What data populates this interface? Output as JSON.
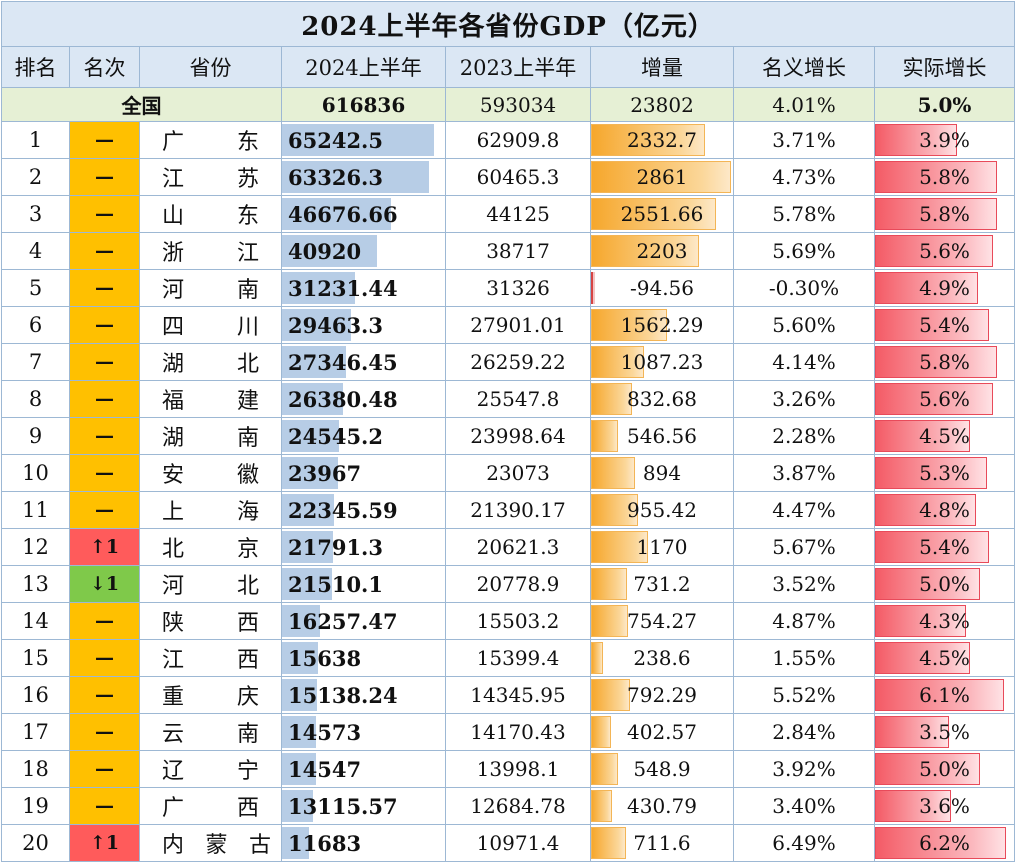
{
  "title": "2024上半年各省份GDP（亿元）",
  "headers": {
    "rank": "排名",
    "change": "名次",
    "province": "省份",
    "gdp_2024": "2024上半年",
    "gdp_2023": "2023上半年",
    "increase": "增量",
    "nominal_growth": "名义增长",
    "real_growth": "实际增长"
  },
  "national": {
    "label": "全国",
    "gdp_2024": "616836",
    "gdp_2023": "593034",
    "increase": "23802",
    "nominal_growth": "4.01%",
    "real_growth": "5.0%"
  },
  "colors": {
    "header_bg": "#dbe7f4",
    "national_bg": "#e6f0d5",
    "rank_flat": "#ffc000",
    "rank_up": "#ff5b5b",
    "rank_down": "#7fc94a",
    "gdp_bar": "#b7cde6",
    "increase_bar": "#f6a72c",
    "real_growth_bar": "#f45b66"
  },
  "chart_data": {
    "type": "table",
    "title": "2024上半年各省份GDP（亿元）",
    "columns": [
      "排名",
      "名次",
      "省份",
      "2024上半年",
      "2023上半年",
      "增量",
      "名义增长",
      "实际增长"
    ],
    "scales": {
      "gdp_2024_max": 70000,
      "increase_max": 2900,
      "real_growth_max": 6.6
    },
    "rows": [
      {
        "rank": "1",
        "change": "—",
        "change_type": "flat",
        "province": [
          "广",
          "东"
        ],
        "gdp_2024": "65242.5",
        "gdp_2024_value": 65242.5,
        "gdp_2023": "62909.8",
        "increase": "2332.7",
        "increase_value": 2332.7,
        "nominal_growth": "3.71%",
        "real_growth": "3.9%",
        "real_growth_value": 3.9
      },
      {
        "rank": "2",
        "change": "—",
        "change_type": "flat",
        "province": [
          "江",
          "苏"
        ],
        "gdp_2024": "63326.3",
        "gdp_2024_value": 63326.3,
        "gdp_2023": "60465.3",
        "increase": "2861",
        "increase_value": 2861,
        "nominal_growth": "4.73%",
        "real_growth": "5.8%",
        "real_growth_value": 5.8
      },
      {
        "rank": "3",
        "change": "—",
        "change_type": "flat",
        "province": [
          "山",
          "东"
        ],
        "gdp_2024": "46676.66",
        "gdp_2024_value": 46676.66,
        "gdp_2023": "44125",
        "increase": "2551.66",
        "increase_value": 2551.66,
        "nominal_growth": "5.78%",
        "real_growth": "5.8%",
        "real_growth_value": 5.8
      },
      {
        "rank": "4",
        "change": "—",
        "change_type": "flat",
        "province": [
          "浙",
          "江"
        ],
        "gdp_2024": "40920",
        "gdp_2024_value": 40920,
        "gdp_2023": "38717",
        "increase": "2203",
        "increase_value": 2203,
        "nominal_growth": "5.69%",
        "real_growth": "5.6%",
        "real_growth_value": 5.6
      },
      {
        "rank": "5",
        "change": "—",
        "change_type": "flat",
        "province": [
          "河",
          "南"
        ],
        "gdp_2024": "31231.44",
        "gdp_2024_value": 31231.44,
        "gdp_2023": "31326",
        "increase": "-94.56",
        "increase_value": -94.56,
        "nominal_growth": "-0.30%",
        "real_growth": "4.9%",
        "real_growth_value": 4.9
      },
      {
        "rank": "6",
        "change": "—",
        "change_type": "flat",
        "province": [
          "四",
          "川"
        ],
        "gdp_2024": "29463.3",
        "gdp_2024_value": 29463.3,
        "gdp_2023": "27901.01",
        "increase": "1562.29",
        "increase_value": 1562.29,
        "nominal_growth": "5.60%",
        "real_growth": "5.4%",
        "real_growth_value": 5.4
      },
      {
        "rank": "7",
        "change": "—",
        "change_type": "flat",
        "province": [
          "湖",
          "北"
        ],
        "gdp_2024": "27346.45",
        "gdp_2024_value": 27346.45,
        "gdp_2023": "26259.22",
        "increase": "1087.23",
        "increase_value": 1087.23,
        "nominal_growth": "4.14%",
        "real_growth": "5.8%",
        "real_growth_value": 5.8
      },
      {
        "rank": "8",
        "change": "—",
        "change_type": "flat",
        "province": [
          "福",
          "建"
        ],
        "gdp_2024": "26380.48",
        "gdp_2024_value": 26380.48,
        "gdp_2023": "25547.8",
        "increase": "832.68",
        "increase_value": 832.68,
        "nominal_growth": "3.26%",
        "real_growth": "5.6%",
        "real_growth_value": 5.6
      },
      {
        "rank": "9",
        "change": "—",
        "change_type": "flat",
        "province": [
          "湖",
          "南"
        ],
        "gdp_2024": "24545.2",
        "gdp_2024_value": 24545.2,
        "gdp_2023": "23998.64",
        "increase": "546.56",
        "increase_value": 546.56,
        "nominal_growth": "2.28%",
        "real_growth": "4.5%",
        "real_growth_value": 4.5
      },
      {
        "rank": "10",
        "change": "—",
        "change_type": "flat",
        "province": [
          "安",
          "徽"
        ],
        "gdp_2024": "23967",
        "gdp_2024_value": 23967,
        "gdp_2023": "23073",
        "increase": "894",
        "increase_value": 894,
        "nominal_growth": "3.87%",
        "real_growth": "5.3%",
        "real_growth_value": 5.3
      },
      {
        "rank": "11",
        "change": "—",
        "change_type": "flat",
        "province": [
          "上",
          "海"
        ],
        "gdp_2024": "22345.59",
        "gdp_2024_value": 22345.59,
        "gdp_2023": "21390.17",
        "increase": "955.42",
        "increase_value": 955.42,
        "nominal_growth": "4.47%",
        "real_growth": "4.8%",
        "real_growth_value": 4.8
      },
      {
        "rank": "12",
        "change": "↑1",
        "change_type": "up",
        "province": [
          "北",
          "京"
        ],
        "gdp_2024": "21791.3",
        "gdp_2024_value": 21791.3,
        "gdp_2023": "20621.3",
        "increase": "1170",
        "increase_value": 1170,
        "nominal_growth": "5.67%",
        "real_growth": "5.4%",
        "real_growth_value": 5.4
      },
      {
        "rank": "13",
        "change": "↓1",
        "change_type": "down",
        "province": [
          "河",
          "北"
        ],
        "gdp_2024": "21510.1",
        "gdp_2024_value": 21510.1,
        "gdp_2023": "20778.9",
        "increase": "731.2",
        "increase_value": 731.2,
        "nominal_growth": "3.52%",
        "real_growth": "5.0%",
        "real_growth_value": 5.0
      },
      {
        "rank": "14",
        "change": "—",
        "change_type": "flat",
        "province": [
          "陕",
          "西"
        ],
        "gdp_2024": "16257.47",
        "gdp_2024_value": 16257.47,
        "gdp_2023": "15503.2",
        "increase": "754.27",
        "increase_value": 754.27,
        "nominal_growth": "4.87%",
        "real_growth": "4.3%",
        "real_growth_value": 4.3
      },
      {
        "rank": "15",
        "change": "—",
        "change_type": "flat",
        "province": [
          "江",
          "西"
        ],
        "gdp_2024": "15638",
        "gdp_2024_value": 15638,
        "gdp_2023": "15399.4",
        "increase": "238.6",
        "increase_value": 238.6,
        "nominal_growth": "1.55%",
        "real_growth": "4.5%",
        "real_growth_value": 4.5
      },
      {
        "rank": "16",
        "change": "—",
        "change_type": "flat",
        "province": [
          "重",
          "庆"
        ],
        "gdp_2024": "15138.24",
        "gdp_2024_value": 15138.24,
        "gdp_2023": "14345.95",
        "increase": "792.29",
        "increase_value": 792.29,
        "nominal_growth": "5.52%",
        "real_growth": "6.1%",
        "real_growth_value": 6.1
      },
      {
        "rank": "17",
        "change": "—",
        "change_type": "flat",
        "province": [
          "云",
          "南"
        ],
        "gdp_2024": "14573",
        "gdp_2024_value": 14573,
        "gdp_2023": "14170.43",
        "increase": "402.57",
        "increase_value": 402.57,
        "nominal_growth": "2.84%",
        "real_growth": "3.5%",
        "real_growth_value": 3.5
      },
      {
        "rank": "18",
        "change": "—",
        "change_type": "flat",
        "province": [
          "辽",
          "宁"
        ],
        "gdp_2024": "14547",
        "gdp_2024_value": 14547,
        "gdp_2023": "13998.1",
        "increase": "548.9",
        "increase_value": 548.9,
        "nominal_growth": "3.92%",
        "real_growth": "5.0%",
        "real_growth_value": 5.0
      },
      {
        "rank": "19",
        "change": "—",
        "change_type": "flat",
        "province": [
          "广",
          "西"
        ],
        "gdp_2024": "13115.57",
        "gdp_2024_value": 13115.57,
        "gdp_2023": "12684.78",
        "increase": "430.79",
        "increase_value": 430.79,
        "nominal_growth": "3.40%",
        "real_growth": "3.6%",
        "real_growth_value": 3.6
      },
      {
        "rank": "20",
        "change": "↑1",
        "change_type": "up",
        "province": [
          "内",
          "蒙",
          "古"
        ],
        "gdp_2024": "11683",
        "gdp_2024_value": 11683,
        "gdp_2023": "10971.4",
        "increase": "711.6",
        "increase_value": 711.6,
        "nominal_growth": "6.49%",
        "real_growth": "6.2%",
        "real_growth_value": 6.2
      }
    ]
  }
}
